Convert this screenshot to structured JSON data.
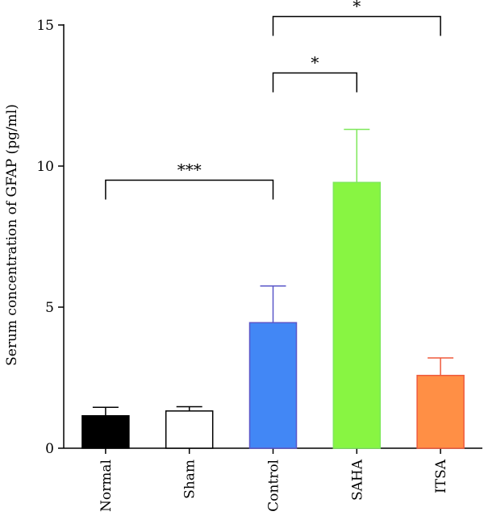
{
  "chart_data": {
    "type": "bar",
    "title": "",
    "xlabel": "",
    "ylabel": "Serum concentration of GFAP (pg/ml)",
    "ylim": [
      0,
      15
    ],
    "yticks": [
      "0",
      "5",
      "10",
      "15"
    ],
    "grid": false,
    "categories": [
      "Normal",
      "Sham",
      "Control",
      "SAHA",
      "ITSA"
    ],
    "values": [
      1.15,
      1.32,
      4.45,
      9.42,
      2.58
    ],
    "errors": [
      0.3,
      0.15,
      1.3,
      1.88,
      0.62
    ],
    "colors": {
      "fill": [
        "#000000",
        "#ffffff",
        "#4287f5",
        "#88f542",
        "#ff8f45"
      ],
      "stroke": [
        "#000000",
        "#000000",
        "#5a57c8",
        "#7ee85a",
        "#ef5a3c"
      ]
    },
    "significance": [
      {
        "from": 0,
        "to": 2,
        "label": "***",
        "y": 9.5
      },
      {
        "from": 2,
        "to": 3,
        "label": "*",
        "y": 13.3
      },
      {
        "from": 2,
        "to": 4,
        "label": "*",
        "y": 15.3
      }
    ]
  }
}
